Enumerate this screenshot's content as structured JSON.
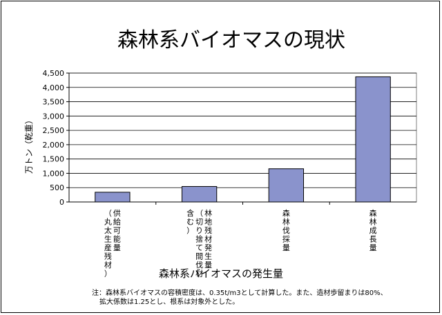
{
  "chart_data": {
    "type": "bar",
    "title": "森林系バイオマスの現状",
    "xlabel": "森林系バイオマスの発生量",
    "ylabel": "万トン（乾重）",
    "ylim": [
      0,
      4500
    ],
    "yticks": [
      0,
      500,
      1000,
      1500,
      2000,
      2500,
      3000,
      3500,
      4000,
      4500
    ],
    "ytick_labels": [
      "0",
      "500",
      "1,000",
      "1,500",
      "2,000",
      "2,500",
      "3,000",
      "3,500",
      "4,000",
      "4,500"
    ],
    "categories": [
      [
        "供給可能量",
        "（丸太生産残材）"
      ],
      [
        "林地残材発生量",
        "（切り捨て間伐材",
        "含む）"
      ],
      [
        "森林伐採量"
      ],
      [
        "森林成長量"
      ]
    ],
    "values": [
      340,
      540,
      1160,
      4370
    ],
    "bar_color": "#8a93cc",
    "bar_edge_color": "#000000",
    "plot_background": "#ffffff",
    "grid": true
  },
  "note": {
    "line1": "注：森林系バイオマスの容積密度は、0.35t/m3として計算した。また、造材歩留まりは80%、",
    "line2": "拡大係数は1.25とし、根系は対象外とした。"
  }
}
